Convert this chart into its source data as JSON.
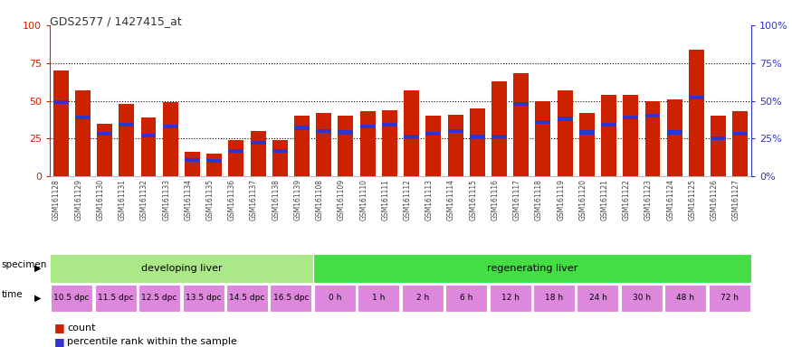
{
  "title": "GDS2577 / 1427415_at",
  "samples": [
    "GSM161128",
    "GSM161129",
    "GSM161130",
    "GSM161131",
    "GSM161132",
    "GSM161133",
    "GSM161134",
    "GSM161135",
    "GSM161136",
    "GSM161137",
    "GSM161138",
    "GSM161139",
    "GSM161108",
    "GSM161109",
    "GSM161110",
    "GSM161111",
    "GSM161112",
    "GSM161113",
    "GSM161114",
    "GSM161115",
    "GSM161116",
    "GSM161117",
    "GSM161118",
    "GSM161119",
    "GSM161120",
    "GSM161121",
    "GSM161122",
    "GSM161123",
    "GSM161124",
    "GSM161125",
    "GSM161126",
    "GSM161127"
  ],
  "count": [
    70,
    57,
    35,
    48,
    39,
    49,
    16,
    15,
    24,
    30,
    24,
    40,
    42,
    40,
    43,
    44,
    57,
    40,
    41,
    45,
    63,
    68,
    50,
    57,
    42,
    54,
    54,
    50,
    51,
    84,
    40,
    43
  ],
  "percentile": [
    49,
    39,
    28,
    34,
    27,
    33,
    11,
    10,
    17,
    22,
    17,
    32,
    30,
    29,
    33,
    34,
    26,
    28,
    30,
    26,
    26,
    48,
    36,
    38,
    29,
    34,
    39,
    40,
    29,
    52,
    25,
    28
  ],
  "bar_color": "#cc2200",
  "pct_color": "#3333cc",
  "ylim": [
    0,
    100
  ],
  "yticks": [
    0,
    25,
    50,
    75,
    100
  ],
  "specimen_groups": [
    {
      "label": "developing liver",
      "start": 0,
      "end": 12,
      "color": "#aae888"
    },
    {
      "label": "regenerating liver",
      "start": 12,
      "end": 32,
      "color": "#44dd44"
    }
  ],
  "time_labels": [
    {
      "label": "10.5 dpc",
      "start": 0,
      "end": 2
    },
    {
      "label": "11.5 dpc",
      "start": 2,
      "end": 4
    },
    {
      "label": "12.5 dpc",
      "start": 4,
      "end": 6
    },
    {
      "label": "13.5 dpc",
      "start": 6,
      "end": 8
    },
    {
      "label": "14.5 dpc",
      "start": 8,
      "end": 10
    },
    {
      "label": "16.5 dpc",
      "start": 10,
      "end": 12
    },
    {
      "label": "0 h",
      "start": 12,
      "end": 14
    },
    {
      "label": "1 h",
      "start": 14,
      "end": 16
    },
    {
      "label": "2 h",
      "start": 16,
      "end": 18
    },
    {
      "label": "6 h",
      "start": 18,
      "end": 20
    },
    {
      "label": "12 h",
      "start": 20,
      "end": 22
    },
    {
      "label": "18 h",
      "start": 22,
      "end": 24
    },
    {
      "label": "24 h",
      "start": 24,
      "end": 26
    },
    {
      "label": "30 h",
      "start": 26,
      "end": 28
    },
    {
      "label": "48 h",
      "start": 28,
      "end": 30
    },
    {
      "label": "72 h",
      "start": 30,
      "end": 32
    }
  ],
  "time_color": "#dd88dd",
  "tick_label_color": "#444444",
  "left_axis_color": "#cc2200",
  "right_axis_color": "#3333cc",
  "tick_bg_color": "#cccccc"
}
